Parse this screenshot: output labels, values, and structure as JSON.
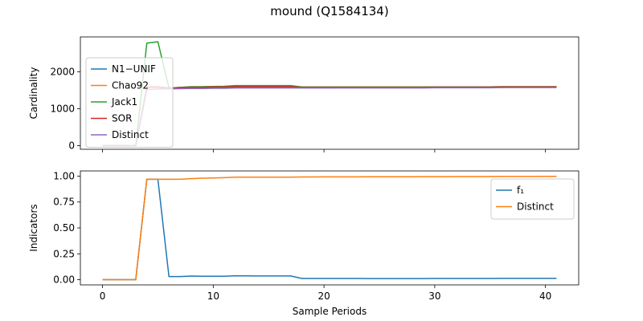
{
  "figure_title": "mound (Q1584134)",
  "chart_data": [
    {
      "type": "line",
      "title": "",
      "xlabel": "",
      "ylabel": "Cardinality",
      "xlim": [
        -2,
        43
      ],
      "ylim": [
        -100,
        2950
      ],
      "xticks": [
        0,
        10,
        20,
        30,
        40
      ],
      "yticks": [
        0,
        1000,
        2000
      ],
      "show_xtick_labels": false,
      "legend_position": "upper-left",
      "x": [
        0,
        1,
        2,
        3,
        4,
        5,
        6,
        7,
        8,
        9,
        10,
        11,
        12,
        13,
        14,
        15,
        16,
        17,
        18,
        19,
        20,
        21,
        22,
        23,
        24,
        25,
        26,
        27,
        28,
        29,
        30,
        31,
        32,
        33,
        34,
        35,
        36,
        37,
        38,
        39,
        40,
        41
      ],
      "series": [
        {
          "name": "N1−UNIF",
          "color": "#1f77b4",
          "values": [
            0,
            0,
            0,
            0,
            1580,
            1590,
            1550,
            1560,
            1570,
            1570,
            1575,
            1575,
            1580,
            1580,
            1580,
            1580,
            1580,
            1580,
            1570,
            1570,
            1570,
            1570,
            1575,
            1575,
            1575,
            1575,
            1575,
            1575,
            1575,
            1575,
            1580,
            1580,
            1580,
            1580,
            1580,
            1580,
            1580,
            1585,
            1585,
            1585,
            1585,
            1585
          ]
        },
        {
          "name": "Chao92",
          "color": "#ff7f0e",
          "values": [
            0,
            0,
            0,
            0,
            1590,
            1600,
            1560,
            1580,
            1590,
            1590,
            1595,
            1600,
            1610,
            1610,
            1610,
            1610,
            1610,
            1610,
            1590,
            1590,
            1590,
            1590,
            1590,
            1590,
            1590,
            1590,
            1590,
            1590,
            1590,
            1590,
            1595,
            1595,
            1595,
            1595,
            1595,
            1595,
            1600,
            1600,
            1600,
            1600,
            1600,
            1600
          ]
        },
        {
          "name": "Jack1",
          "color": "#2ca02c",
          "values": [
            0,
            0,
            0,
            0,
            2780,
            2820,
            1560,
            1580,
            1600,
            1600,
            1605,
            1610,
            1630,
            1630,
            1630,
            1630,
            1630,
            1630,
            1590,
            1590,
            1590,
            1590,
            1590,
            1590,
            1590,
            1590,
            1590,
            1590,
            1590,
            1590,
            1595,
            1595,
            1595,
            1595,
            1595,
            1595,
            1600,
            1600,
            1600,
            1600,
            1600,
            1600
          ]
        },
        {
          "name": "SOR",
          "color": "#d62728",
          "values": [
            0,
            0,
            0,
            0,
            1580,
            1590,
            1555,
            1570,
            1580,
            1580,
            1590,
            1590,
            1600,
            1600,
            1600,
            1600,
            1600,
            1600,
            1580,
            1580,
            1580,
            1580,
            1580,
            1580,
            1580,
            1580,
            1580,
            1580,
            1580,
            1580,
            1585,
            1585,
            1585,
            1585,
            1585,
            1585,
            1590,
            1590,
            1590,
            1590,
            1590,
            1590
          ]
        },
        {
          "name": "Distinct",
          "color": "#9467bd",
          "values": [
            0,
            0,
            0,
            0,
            1520,
            1540,
            1540,
            1545,
            1550,
            1550,
            1555,
            1555,
            1565,
            1565,
            1565,
            1565,
            1565,
            1565,
            1565,
            1565,
            1565,
            1565,
            1565,
            1565,
            1565,
            1565,
            1565,
            1565,
            1565,
            1565,
            1570,
            1570,
            1570,
            1570,
            1570,
            1570,
            1575,
            1575,
            1575,
            1575,
            1575,
            1575
          ]
        }
      ]
    },
    {
      "type": "line",
      "title": "",
      "xlabel": "Sample Periods",
      "ylabel": "Indicators",
      "xlim": [
        -2,
        43
      ],
      "ylim": [
        -0.05,
        1.05
      ],
      "xticks": [
        0,
        10,
        20,
        30,
        40
      ],
      "yticks": [
        0.0,
        0.25,
        0.5,
        0.75,
        1.0
      ],
      "ytick_labels": [
        "0.00",
        "0.25",
        "0.50",
        "0.75",
        "1.00"
      ],
      "show_xtick_labels": true,
      "legend_position": "upper-right",
      "x": [
        0,
        1,
        2,
        3,
        4,
        5,
        6,
        7,
        8,
        9,
        10,
        11,
        12,
        13,
        14,
        15,
        16,
        17,
        18,
        19,
        20,
        21,
        22,
        23,
        24,
        25,
        26,
        27,
        28,
        29,
        30,
        31,
        32,
        33,
        34,
        35,
        36,
        37,
        38,
        39,
        40,
        41
      ],
      "series": [
        {
          "name": "f₁",
          "color": "#1f77b4",
          "values": [
            0,
            0,
            0,
            0,
            0.97,
            0.97,
            0.03,
            0.03,
            0.035,
            0.033,
            0.033,
            0.033,
            0.038,
            0.037,
            0.036,
            0.036,
            0.036,
            0.036,
            0.012,
            0.012,
            0.012,
            0.012,
            0.012,
            0.012,
            0.011,
            0.011,
            0.011,
            0.011,
            0.011,
            0.011,
            0.012,
            0.012,
            0.012,
            0.012,
            0.012,
            0.012,
            0.013,
            0.013,
            0.013,
            0.013,
            0.013,
            0.013
          ]
        },
        {
          "name": "Distinct",
          "color": "#ff7f0e",
          "values": [
            0,
            0,
            0,
            0,
            0.97,
            0.97,
            0.97,
            0.97,
            0.975,
            0.98,
            0.982,
            0.985,
            0.99,
            0.99,
            0.99,
            0.99,
            0.99,
            0.99,
            0.992,
            0.992,
            0.993,
            0.993,
            0.993,
            0.993,
            0.994,
            0.994,
            0.994,
            0.994,
            0.994,
            0.995,
            0.995,
            0.995,
            0.996,
            0.996,
            0.996,
            0.996,
            0.997,
            0.997,
            0.997,
            0.997,
            0.998,
            0.998
          ]
        }
      ]
    }
  ]
}
